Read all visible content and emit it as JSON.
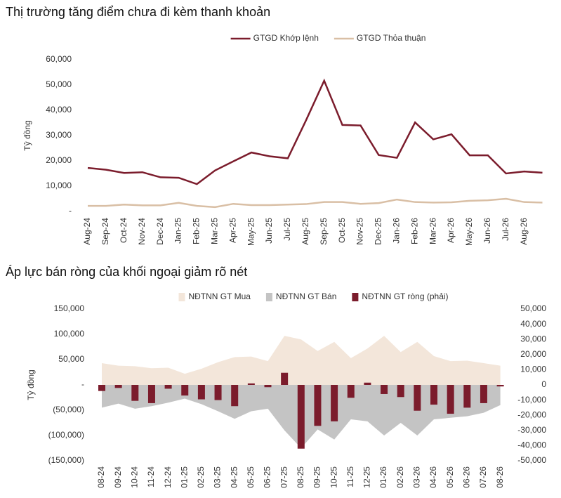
{
  "chart_data": [
    {
      "type": "line",
      "title": "Thị trường tăng điểm chưa đi kèm thanh khoản",
      "y_label": "Tỷ đồng",
      "categories": [
        "Aug-24",
        "Sep-24",
        "Oct-24",
        "Nov-24",
        "Dec-24",
        "Jan-25",
        "Feb-25",
        "Mar-25",
        "Apr-25",
        "May-25",
        "Jun-25",
        "Jul-25",
        "Aug-25",
        "Sep-25",
        "Oct-25",
        "Nov-25",
        "Dec-25",
        "Jan-26",
        "Feb-26",
        "Mar-26",
        "Apr-26",
        "May-26",
        "Jun-26",
        "Jul-26",
        "Aug-26",
        null
      ],
      "series": [
        {
          "name": "GTGD Khớp lệnh",
          "color": "#7b1c2c",
          "values": [
            17200,
            16500,
            15200,
            15500,
            13500,
            13300,
            10800,
            16200,
            19800,
            23300,
            21800,
            21000,
            36000,
            51700,
            34200,
            34000,
            22300,
            21200,
            35200,
            28500,
            30500,
            22200,
            22200,
            15000,
            15800,
            15300
          ]
        },
        {
          "name": "GTGD Thỏa thuận",
          "color": "#d9bfa5",
          "values": [
            2200,
            2200,
            2700,
            2400,
            2400,
            3400,
            2200,
            1700,
            3000,
            2500,
            2500,
            2700,
            2900,
            3700,
            3700,
            3000,
            3300,
            4700,
            3700,
            3500,
            3600,
            4200,
            4400,
            5000,
            3700,
            3500
          ]
        }
      ],
      "ylim": [
        0,
        60000
      ],
      "yticks": [
        {
          "value": 0,
          "label": "-"
        },
        {
          "value": 10000,
          "label": "10,000"
        },
        {
          "value": 20000,
          "label": "20,000"
        },
        {
          "value": 30000,
          "label": "30,000"
        },
        {
          "value": 40000,
          "label": "40,000"
        },
        {
          "value": 50000,
          "label": "50,000"
        },
        {
          "value": 60000,
          "label": "60,000"
        }
      ],
      "grid": false
    },
    {
      "type": "combo",
      "title": "Áp lực bán ròng của khối ngoại giảm rõ nét",
      "y_label": "Tỷ đồng",
      "categories": [
        "08-24",
        "09-24",
        "10-24",
        "11-24",
        "12-24",
        "01-25",
        "02-25",
        "03-25",
        "04-25",
        "05-25",
        "06-25",
        "07-25",
        "08-25",
        "09-25",
        "10-25",
        "11-25",
        "12-25",
        "01-26",
        "02-26",
        "03-26",
        "04-26",
        "05-26",
        "06-26",
        "07-26",
        "08-26"
      ],
      "series": [
        {
          "name": "NĐTNN GT Mua",
          "type": "area",
          "color": "#f3e6da",
          "values": [
            43000,
            38000,
            37000,
            33000,
            34000,
            22000,
            32000,
            45000,
            55000,
            56000,
            47000,
            97000,
            90000,
            67000,
            85000,
            53000,
            72000,
            97000,
            65000,
            85000,
            57000,
            47000,
            48000,
            43000,
            38000
          ]
        },
        {
          "name": "NĐTNN GT Bán",
          "type": "area",
          "color": "#c4c4c4",
          "values": [
            -45000,
            -37000,
            -47000,
            -42000,
            -35000,
            -27000,
            -38000,
            -52000,
            -67000,
            -52000,
            -47000,
            -90000,
            -125000,
            -88000,
            -108000,
            -68000,
            -72000,
            -100000,
            -75000,
            -100000,
            -68000,
            -65000,
            -62000,
            -55000,
            -40000
          ]
        },
        {
          "name": "NĐTNN GT ròng (phải)",
          "type": "bar",
          "axis": "y2",
          "color": "#7b1c2c",
          "values": [
            -4000,
            -2000,
            -10500,
            -12000,
            -2500,
            -7000,
            -9500,
            -10000,
            -14000,
            1000,
            -1500,
            8000,
            -42000,
            -27000,
            -24000,
            -8500,
            1500,
            -6000,
            -8000,
            -17000,
            -13000,
            -19000,
            -15000,
            -12000,
            -1000
          ]
        }
      ],
      "ylim": [
        -150000,
        150000
      ],
      "yticks": [
        {
          "value": 150000,
          "label": "150,000"
        },
        {
          "value": 100000,
          "label": "100,000"
        },
        {
          "value": 50000,
          "label": "50,000"
        },
        {
          "value": 0,
          "label": "-"
        },
        {
          "value": -50000,
          "label": "(50,000)"
        },
        {
          "value": -100000,
          "label": "(100,000)"
        },
        {
          "value": -150000,
          "label": "(150,000)"
        }
      ],
      "y2lim": [
        -50000,
        50000
      ],
      "y2ticks": [
        {
          "value": 50000,
          "label": "50,000"
        },
        {
          "value": 40000,
          "label": "40,000"
        },
        {
          "value": 30000,
          "label": "30,000"
        },
        {
          "value": 20000,
          "label": "20,000"
        },
        {
          "value": 10000,
          "label": "10,000"
        },
        0,
        {
          "value": -10000,
          "label": "-10,000"
        },
        {
          "value": -20000,
          "label": "-20,000"
        },
        {
          "value": -30000,
          "label": "-30,000"
        },
        {
          "value": -40000,
          "label": "-40,000"
        },
        {
          "value": -50000,
          "label": "-50,000"
        }
      ],
      "grid": false
    }
  ]
}
